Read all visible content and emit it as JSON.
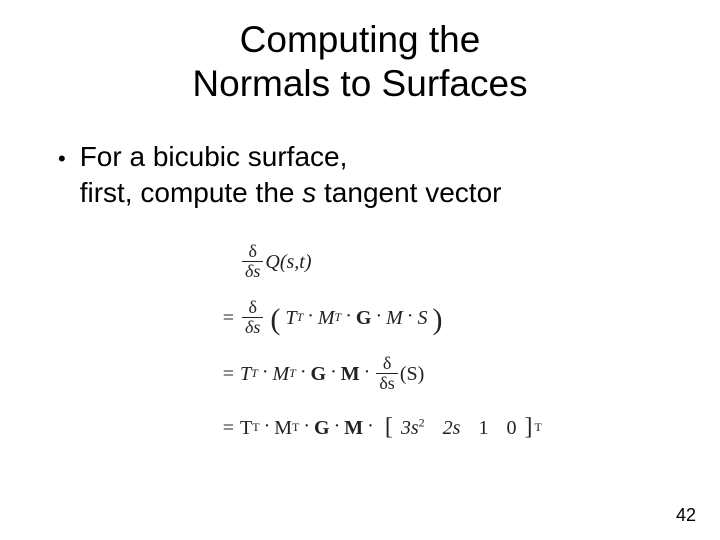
{
  "title_line1": "Computing the",
  "title_line2": "Normals to Surfaces",
  "bullet": {
    "line1": "For a bicubic surface,",
    "line2_a": "first, compute the ",
    "line2_var": "s",
    "line2_b": " tangent vector"
  },
  "math": {
    "delta": "δ",
    "ds": "δs",
    "dsrm": "δs",
    "Q": "Q",
    "args": "(s,t)",
    "eq": "=",
    "TT": "T",
    "supT": "T",
    "MT": "M",
    "G": "G",
    "M": "M",
    "S": "S",
    "Sparen": "(S)",
    "vec1": "3s",
    "vec1sup": "2",
    "vec2": "2s",
    "vec3": "1",
    "vec4": "0",
    "finalSupT": "T"
  },
  "pageNumber": "42",
  "colors": {
    "bg": "#ffffff",
    "text": "#000000",
    "math": "#222222"
  }
}
